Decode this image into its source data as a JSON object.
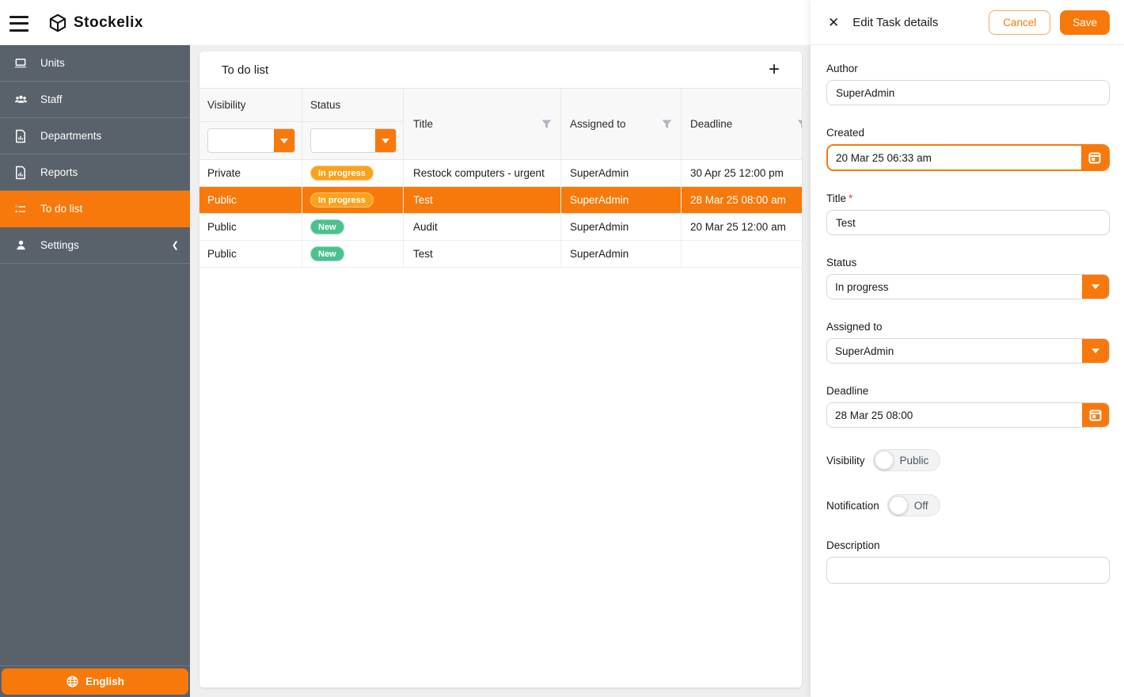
{
  "topbar": {
    "brand": "Stockelix"
  },
  "sidebar": {
    "items": [
      {
        "label": "Units",
        "icon": "laptop-icon",
        "active": false
      },
      {
        "label": "Staff",
        "icon": "people-icon",
        "active": false
      },
      {
        "label": "Departments",
        "icon": "document-chart-icon",
        "active": false
      },
      {
        "label": "Reports",
        "icon": "document-chart-icon",
        "active": false
      },
      {
        "label": "To do list",
        "icon": "checklist-icon",
        "active": true
      },
      {
        "label": "Settings",
        "icon": "person-icon",
        "active": false,
        "chevron": "chevron-left-icon"
      }
    ],
    "language_button": {
      "label": "English",
      "icon": "globe-icon"
    }
  },
  "main": {
    "card_title": "To do list",
    "add_button_label": "+",
    "table": {
      "columns": [
        "Visibility",
        "Status",
        "Title",
        "Assigned to",
        "Deadline"
      ],
      "filter_dropdowns": [
        {
          "column": "Visibility",
          "value": ""
        },
        {
          "column": "Status",
          "value": ""
        }
      ],
      "rows": [
        {
          "visibility": "Private",
          "status": "In progress",
          "status_color": "amber",
          "title": "Restock computers - urgent",
          "assigned_to": "SuperAdmin",
          "deadline": "30 Apr 25 12:00 pm",
          "selected": false
        },
        {
          "visibility": "Public",
          "status": "In progress",
          "status_color": "amber",
          "title": "Test",
          "assigned_to": "SuperAdmin",
          "deadline": "28 Mar 25 08:00 am",
          "selected": true
        },
        {
          "visibility": "Public",
          "status": "New",
          "status_color": "green",
          "title": "Audit",
          "assigned_to": "SuperAdmin",
          "deadline": "20 Mar 25 12:00 am",
          "selected": false
        },
        {
          "visibility": "Public",
          "status": "New",
          "status_color": "green",
          "title": "Test",
          "assigned_to": "SuperAdmin",
          "deadline": "",
          "selected": false
        }
      ]
    }
  },
  "panel": {
    "title": "Edit Task details",
    "cancel_label": "Cancel",
    "save_label": "Save",
    "fields": {
      "author": {
        "label": "Author",
        "value": "SuperAdmin"
      },
      "created": {
        "label": "Created",
        "value": "20 Mar 25 06:33 am",
        "icon": "calendar-icon"
      },
      "task_title": {
        "label": "Title",
        "required_mark": "*",
        "value": "Test"
      },
      "status": {
        "label": "Status",
        "value": "In progress",
        "icon": "chevron-down-icon"
      },
      "assigned_to": {
        "label": "Assigned to",
        "value": "SuperAdmin",
        "icon": "chevron-down-icon"
      },
      "deadline": {
        "label": "Deadline",
        "value": "28 Mar 25 08:00",
        "icon": "calendar-icon"
      },
      "visibility": {
        "label": "Visibility",
        "value": "Public"
      },
      "notification": {
        "label": "Notification",
        "value": "Off"
      },
      "description": {
        "label": "Description",
        "value": ""
      }
    }
  },
  "colors": {
    "accent_orange": "#f8790b",
    "sidebar_bg": "#59616a",
    "badge_in_progress": "#faa21c",
    "badge_new": "#4cc08e",
    "selected_row": "#f8790b"
  }
}
